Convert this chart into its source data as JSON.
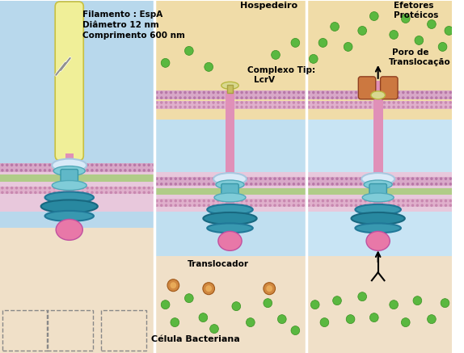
{
  "bg_left": "#b8d8ec",
  "bg_mid": "#c0dff0",
  "bg_right": "#c8e4f4",
  "host_bg": "#f0dca8",
  "bact_bg": "#f0e0c8",
  "mem_outer_fc": "#d8a8c8",
  "mem_outer_dc": "#b878a8",
  "mem_inner_fc": "#e0b0cc",
  "mem_inner_dc": "#c888b0",
  "periplasm_fc": "#b0cc88",
  "filament_fc": "#f0ef98",
  "filament_ec": "#c8c040",
  "needle_pink": "#e090b8",
  "ring_white_fc": "#d8eaf8",
  "ring_white_ec": "#a8c8e0",
  "teal_upper_fc": "#80ccd8",
  "teal_upper_ec": "#50a8b8",
  "teal_waist_fc": "#60b8c8",
  "teal_waist_ec": "#3898a8",
  "teal_lower_fc": "#3898b0",
  "teal_lower_ec": "#207898",
  "teal_base_fc": "#2888a0",
  "teal_base_ec": "#186880",
  "pink_bulge_fc": "#e878a8",
  "pink_bulge_ec": "#c050a0",
  "tip_fc": "#d8d890",
  "tip_ec": "#b8b840",
  "pore_fc": "#cc7840",
  "pore_ec": "#904020",
  "green_dot": "#5ab840",
  "green_dot_ec": "#389020",
  "orange_dot": "#d08840",
  "orange_dot_ec": "#a05818",
  "ann_filamento": "Filamento : EspA",
  "ann_diametro": "Diâmetro 12 nm",
  "ann_comprimento": "Comprimento 600 nm",
  "ann_hospedeiro": "Hospedeiro",
  "ann_complexo": "Complexo Tip:",
  "ann_lcrv": "LcrV",
  "ann_poro1": "Poro de",
  "ann_poro2": "Translocação",
  "ann_efetores1": "Efetores",
  "ann_efetores2": "Protéicos",
  "ann_translocador": "Translocador",
  "ann_celula": "Célula Bacteriana"
}
